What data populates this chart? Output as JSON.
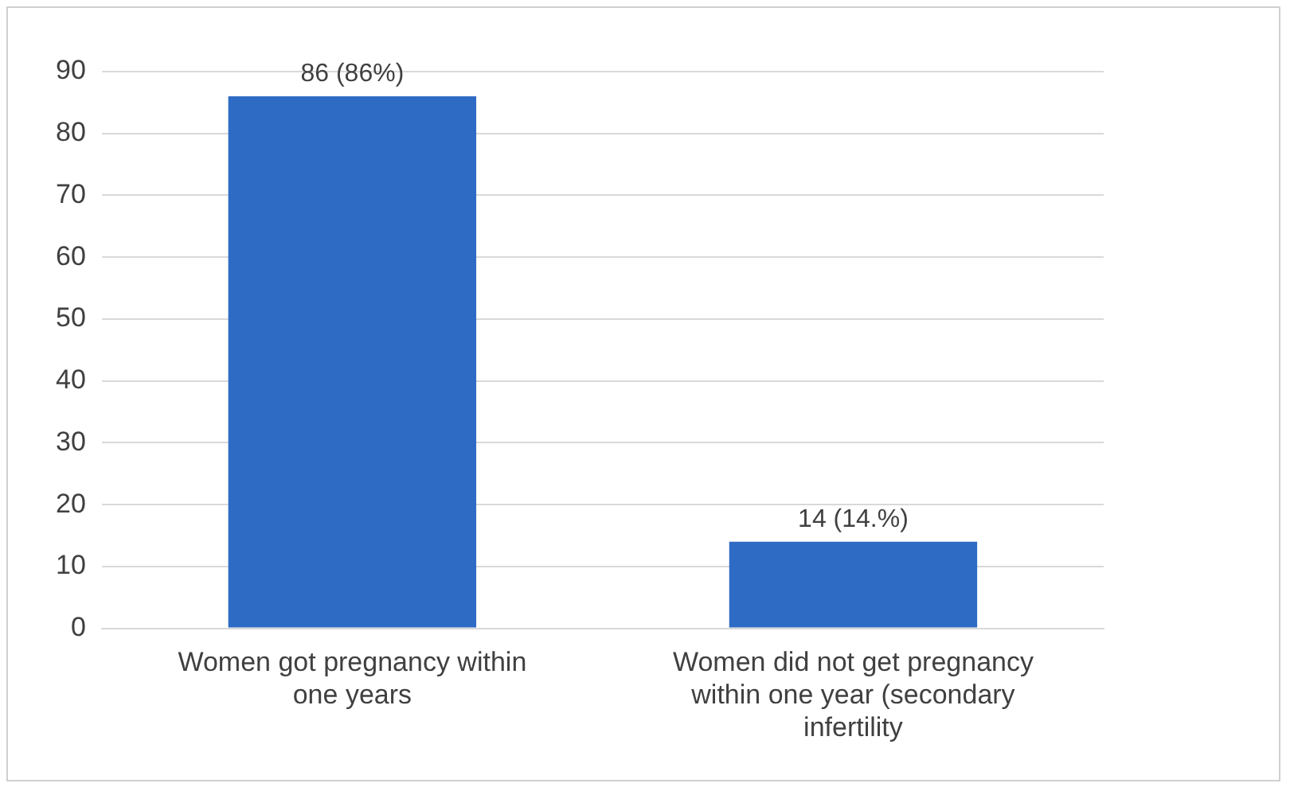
{
  "chart_data": {
    "type": "bar",
    "categories": [
      "Women got pregnancy within one years",
      "Women did not get pregnancy within one year (secondary infertility"
    ],
    "values": [
      86,
      14
    ],
    "value_labels": [
      "86 (86%)",
      "14 (14.%)"
    ],
    "color": "#2e6bc4",
    "ylim": [
      0,
      90
    ],
    "yticks": [
      0,
      10,
      20,
      30,
      40,
      50,
      60,
      70,
      80,
      90
    ],
    "grid": "y",
    "legend": false
  }
}
